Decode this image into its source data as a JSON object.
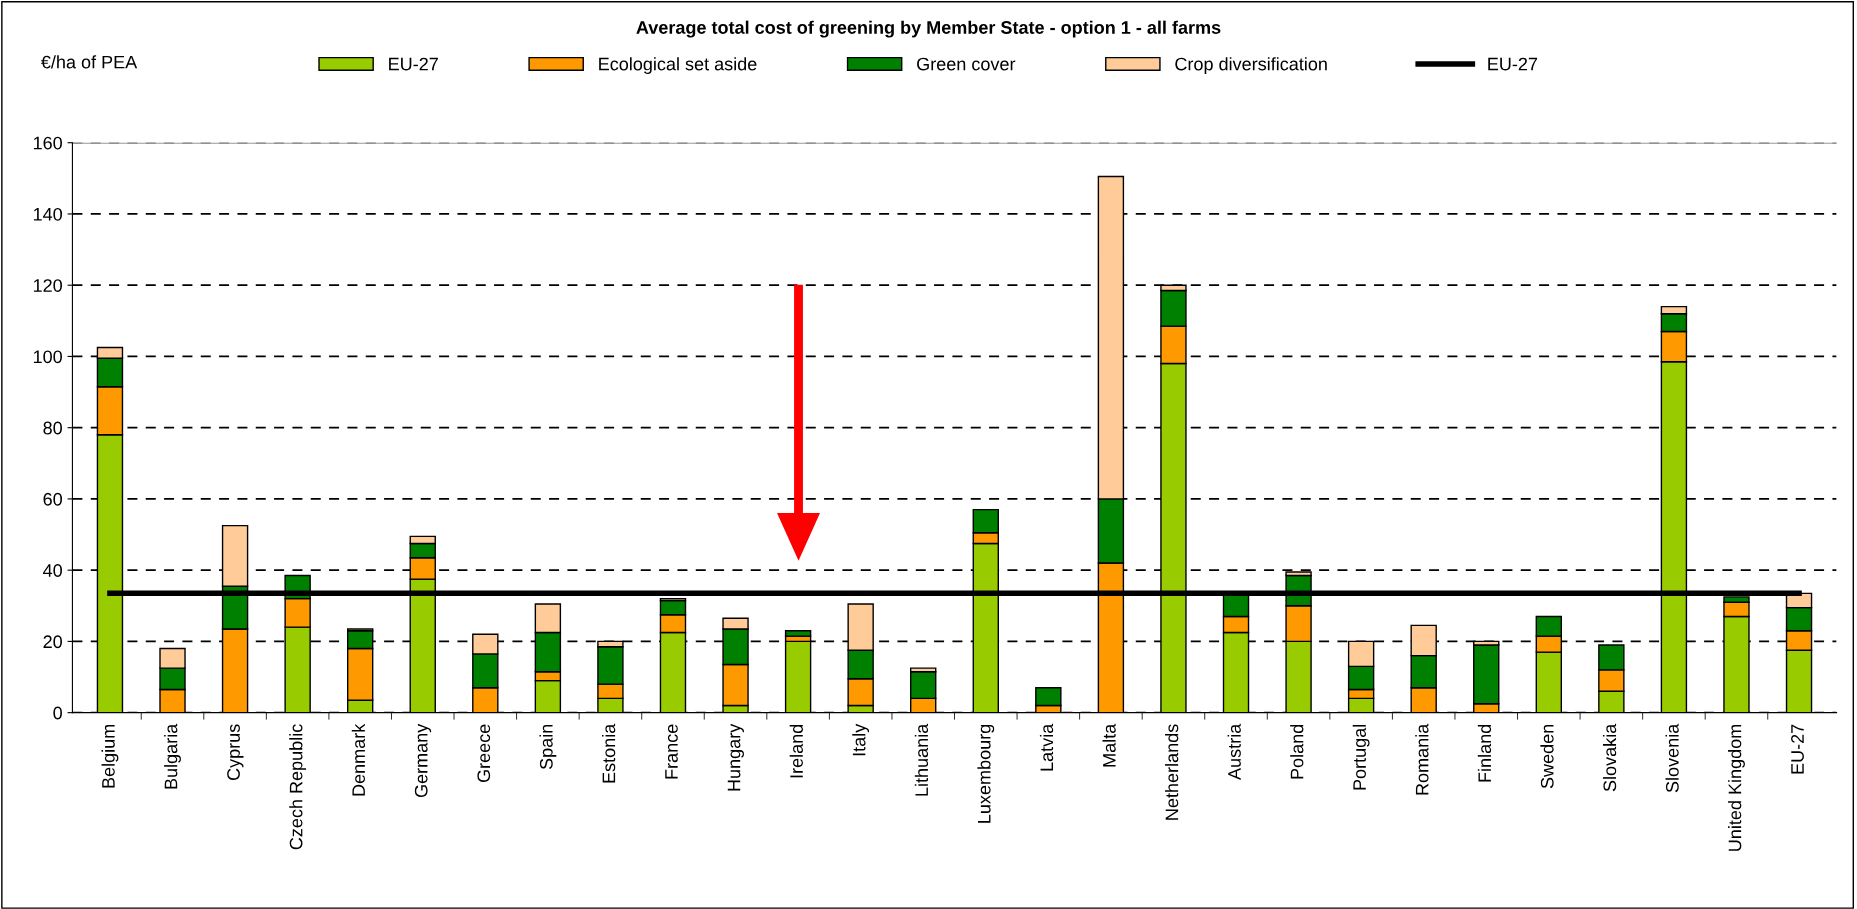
{
  "chart_data": {
    "type": "bar",
    "stacked": true,
    "title": "Average total cost of greening by Member State - option 1 - all farms",
    "ylabel": "€/ha of PEA",
    "categories": [
      "Belgium",
      "Bulgaria",
      "Cyprus",
      "Czech Republic",
      "Denmark",
      "Germany",
      "Greece",
      "Spain",
      "Estonia",
      "France",
      "Hungary",
      "Ireland",
      "Italy",
      "Lithuania",
      "Luxembourg",
      "Latvia",
      "Malta",
      "Netherlands",
      "Austria",
      "Poland",
      "Portugal",
      "Romania",
      "Finland",
      "Sweden",
      "Slovakia",
      "Slovenia",
      "United Kingdom",
      "EU-27"
    ],
    "series": [
      {
        "name": "EU-27",
        "color": "#99cc00",
        "values": [
          78,
          0,
          0,
          24,
          3.5,
          37.5,
          0,
          9,
          4,
          22.5,
          2,
          20,
          2,
          null,
          47.5,
          0,
          0,
          98,
          22.5,
          20,
          4,
          0,
          null,
          17,
          6,
          98.5,
          27,
          17.5
        ]
      },
      {
        "name": "Ecological set aside",
        "color": "#ff9900",
        "values": [
          13.5,
          6.5,
          23.5,
          8,
          14.5,
          6,
          7,
          2.5,
          4,
          5,
          11.5,
          1.5,
          7.5,
          4,
          3,
          2,
          42,
          10.5,
          4.5,
          10,
          2.5,
          7,
          2.5,
          4.5,
          6,
          8.5,
          4,
          5.5
        ]
      },
      {
        "name": "Green cover",
        "color": "#008000",
        "values": [
          8,
          6,
          12,
          6.5,
          5,
          4,
          9.5,
          11,
          10.5,
          4,
          10,
          1.5,
          8,
          7.5,
          6.5,
          5,
          18,
          10,
          6.5,
          8.5,
          6.5,
          9,
          16.5,
          5.5,
          7,
          5,
          1.5,
          6.5
        ]
      },
      {
        "name": "Crop diversification",
        "color": "#ffcc99",
        "values": [
          3,
          5.5,
          17,
          0,
          0.5,
          2,
          5.5,
          8,
          1.5,
          0.5,
          3,
          0,
          13,
          1,
          0,
          0,
          90.5,
          1.5,
          0,
          1,
          7,
          8.5,
          1,
          0,
          0,
          2,
          0,
          4
        ]
      },
      {
        "name": "EU-27",
        "type": "line",
        "color": "#000000",
        "values": [
          33.5,
          33.5,
          33.5,
          33.5,
          33.5,
          33.5,
          33.5,
          33.5,
          33.5,
          33.5,
          33.5,
          33.5,
          33.5,
          33.5,
          33.5,
          33.5,
          33.5,
          33.5,
          33.5,
          33.5,
          33.5,
          33.5,
          33.5,
          33.5,
          33.5,
          33.5,
          33.5,
          33.5
        ]
      }
    ],
    "ylim": [
      0,
      160
    ],
    "yticks": [
      0,
      20,
      40,
      60,
      80,
      100,
      120,
      140,
      160
    ],
    "grid": "y",
    "legend": "top"
  }
}
